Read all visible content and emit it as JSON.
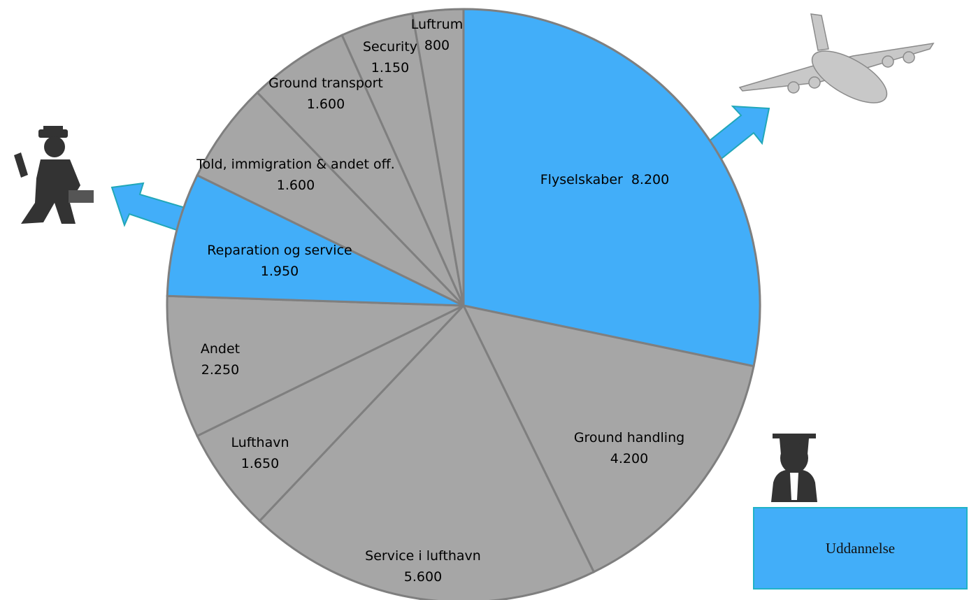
{
  "chart_data": {
    "type": "pie",
    "categories": [
      "Flyselskaber",
      "Ground handling",
      "Service i lufthavn",
      "Lufthavn",
      "Andet",
      "Reparation og service",
      "Told, immigration & andet off.",
      "Ground transport",
      "Security",
      "Luftrum"
    ],
    "values": [
      8200,
      4200,
      5600,
      1650,
      2250,
      1950,
      1600,
      1600,
      1150,
      800
    ],
    "value_labels": [
      "8.200",
      "4.200",
      "5.600",
      "1.650",
      "2.250",
      "1.950",
      "1.600",
      "1.600",
      "1.150",
      "800"
    ],
    "colors": [
      "#42aef9",
      "#a6a6a6",
      "#a6a6a6",
      "#a6a6a6",
      "#a6a6a6",
      "#42aef9",
      "#a6a6a6",
      "#a6a6a6",
      "#a6a6a6",
      "#a6a6a6"
    ],
    "annotations": [
      "Uddannelse"
    ]
  }
}
